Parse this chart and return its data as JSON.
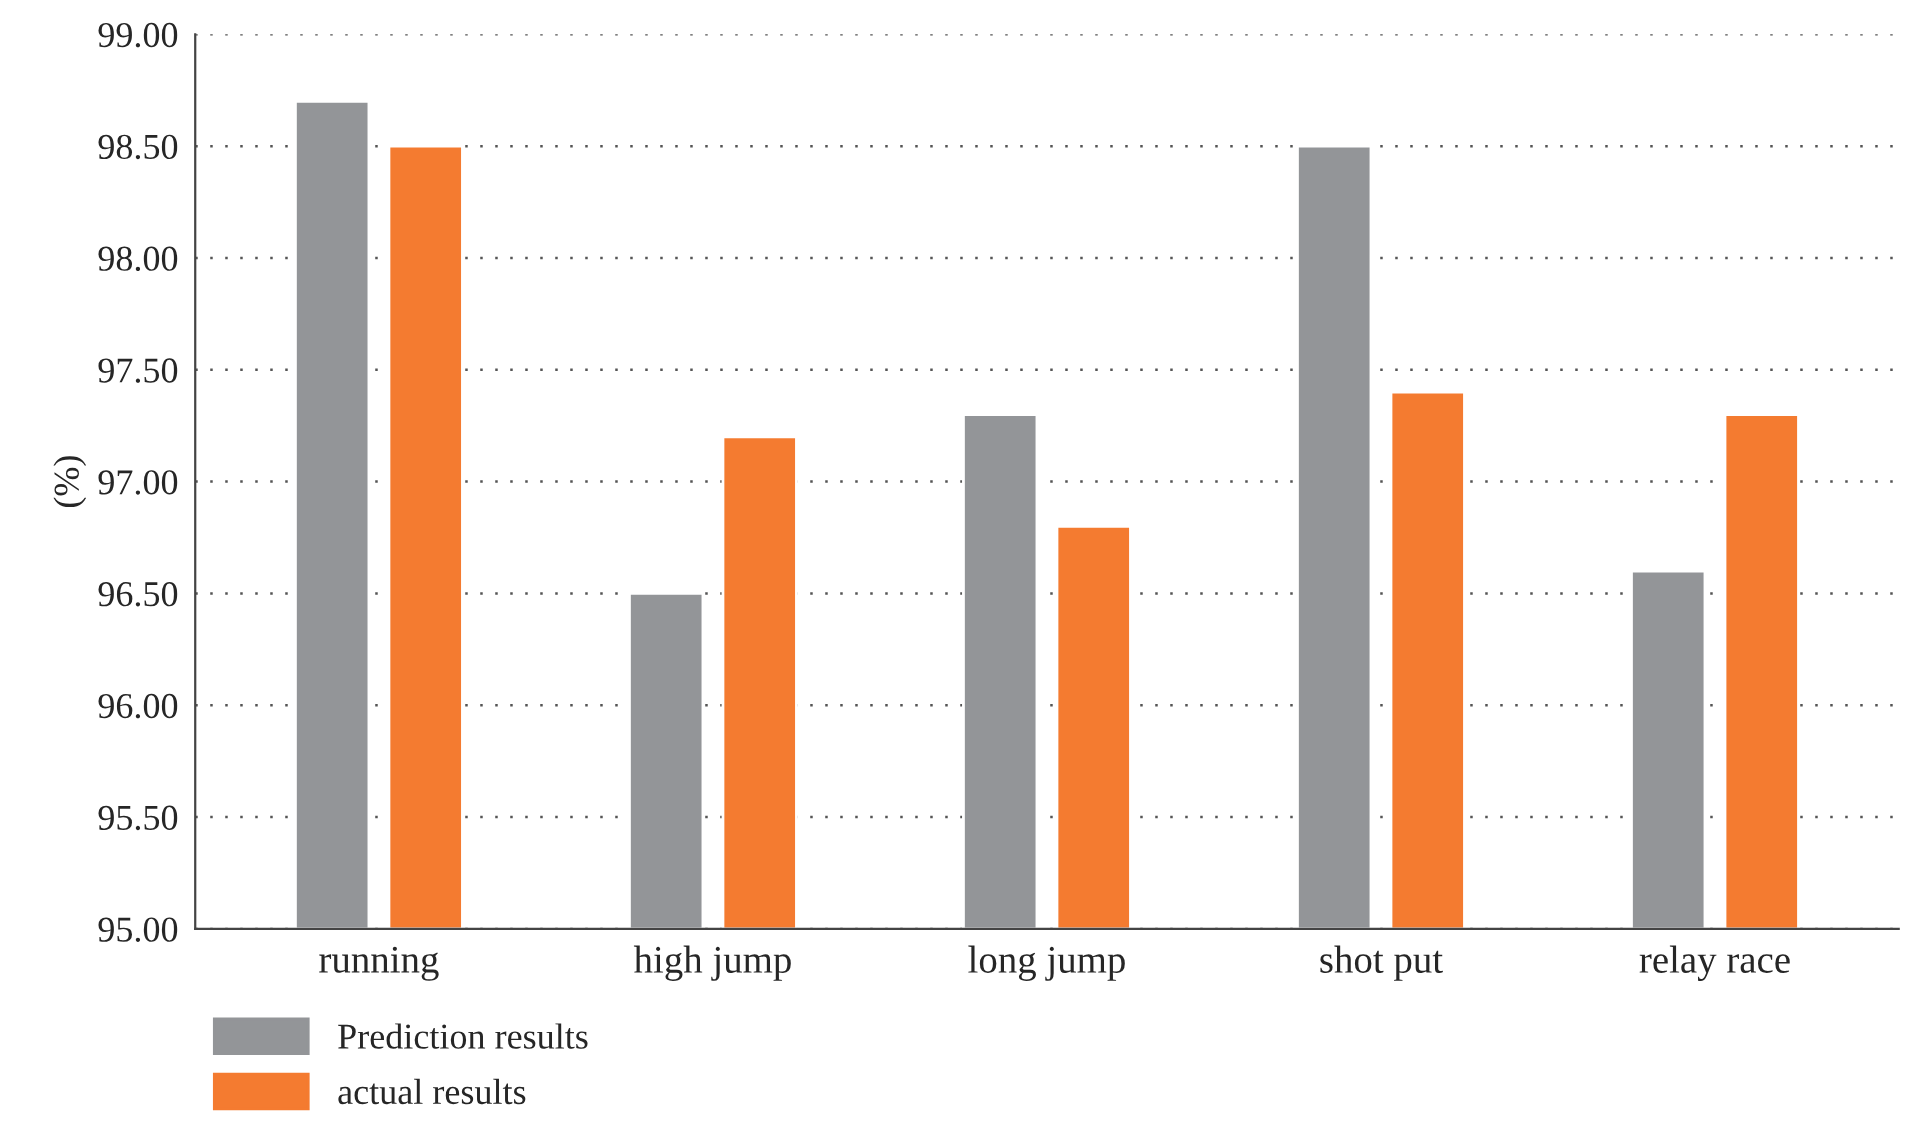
{
  "chart_data": {
    "type": "bar",
    "ylabel": "(%)",
    "categories": [
      "running",
      "high jump",
      "long jump",
      "shot put",
      "relay race"
    ],
    "series": [
      {
        "name": "Prediction results",
        "color": "#939598",
        "values": [
          98.7,
          96.5,
          97.3,
          98.5,
          96.6
        ]
      },
      {
        "name": "actual results",
        "color": "#f47b30",
        "values": [
          98.5,
          97.2,
          96.8,
          97.4,
          97.3
        ]
      }
    ],
    "ylim": [
      95,
      99
    ],
    "yticks": [
      {
        "value": 95,
        "label": "95.00"
      },
      {
        "value": 95.5,
        "label": "95.50"
      },
      {
        "value": 96,
        "label": "96.00"
      },
      {
        "value": 96.5,
        "label": "96.50"
      },
      {
        "value": 97,
        "label": "97.00"
      },
      {
        "value": 97.5,
        "label": "97.50"
      },
      {
        "value": 98,
        "label": "98.00"
      },
      {
        "value": 98.5,
        "label": "98.50"
      },
      {
        "value": 99,
        "label": "99.00"
      }
    ],
    "grid": "y",
    "legend": "bottom left"
  }
}
